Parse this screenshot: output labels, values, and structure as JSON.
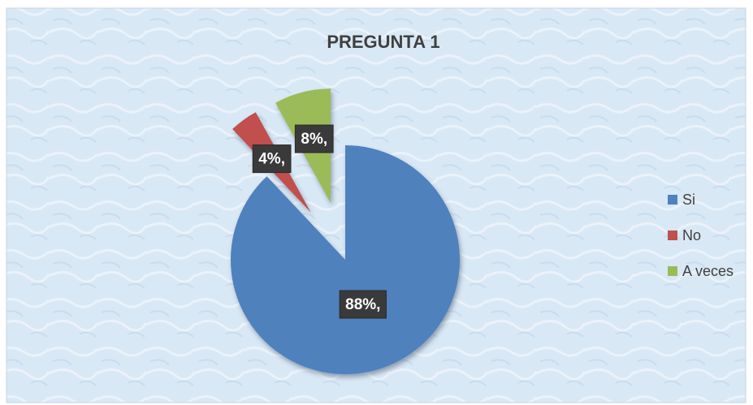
{
  "chart_data": {
    "type": "pie",
    "title": "PREGUNTA 1",
    "categories": [
      "Si",
      "No",
      "A veces"
    ],
    "values": [
      88,
      4,
      8
    ],
    "value_labels": [
      "88%,",
      "4%,",
      "8%,"
    ],
    "colors": [
      "#4f81bd",
      "#c0504d",
      "#9bbb59"
    ],
    "legend": "right"
  }
}
